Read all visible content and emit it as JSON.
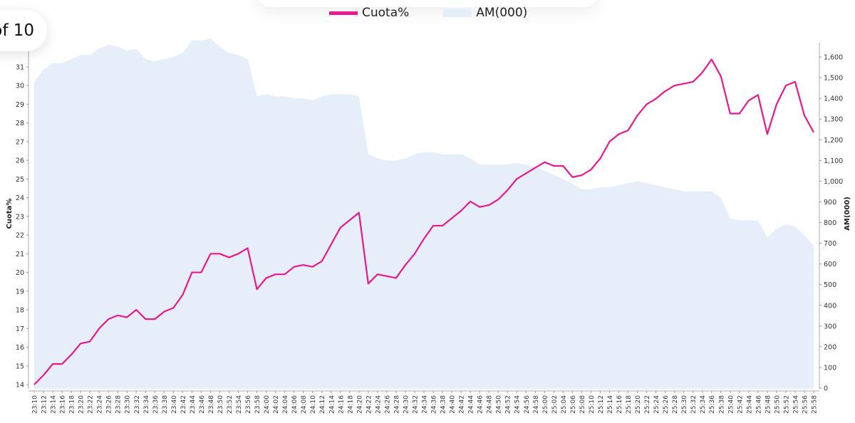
{
  "pager": {
    "label": "of 10"
  },
  "chart_data": {
    "type": "line",
    "title": "",
    "legend_position": "top-center",
    "ylabel": "Cuota%",
    "y2label": "AM(000)",
    "ylim": [
      13.8,
      31.8
    ],
    "y2lim": [
      0,
      1700
    ],
    "yticks": [
      14,
      15,
      16,
      17,
      18,
      19,
      20,
      21,
      22,
      23,
      24,
      25,
      26,
      27,
      28,
      29,
      30,
      31
    ],
    "y2ticks": [
      "0",
      "100",
      "200",
      "300",
      "400",
      "500",
      "600",
      "700",
      "800",
      "900",
      "1,000",
      "1,100",
      "1,200",
      "1,300",
      "1,400",
      "1,500",
      "1,600"
    ],
    "x": [
      "23:10",
      "23:12",
      "23:14",
      "23:16",
      "23:18",
      "23:20",
      "23:22",
      "23:24",
      "23:26",
      "23:28",
      "23:30",
      "23:32",
      "23:34",
      "23:36",
      "23:38",
      "23:40",
      "23:42",
      "23:44",
      "23:46",
      "23:48",
      "23:50",
      "23:52",
      "23:54",
      "23:56",
      "23:58",
      "24:00",
      "24:02",
      "24:04",
      "24:06",
      "24:08",
      "24:10",
      "24:12",
      "24:14",
      "24:16",
      "24:18",
      "24:20",
      "24:22",
      "24:24",
      "24:26",
      "24:28",
      "24:30",
      "24:32",
      "24:34",
      "24:36",
      "24:38",
      "24:40",
      "24:42",
      "24:44",
      "24:46",
      "24:48",
      "24:50",
      "24:52",
      "24:54",
      "24:56",
      "24:58",
      "25:00",
      "25:02",
      "25:04",
      "25:06",
      "25:08",
      "25:10",
      "25:12",
      "25:14",
      "25:16",
      "25:18",
      "25:20",
      "25:22",
      "25:24",
      "25:26",
      "25:28",
      "25:30",
      "25:32",
      "25:34",
      "25:36",
      "25:38",
      "25:40",
      "25:42",
      "25:44",
      "25:46",
      "25:48",
      "25:50",
      "25:52",
      "25:54",
      "25:56",
      "25:58"
    ],
    "series": [
      {
        "name": "Cuota%",
        "axis": "left",
        "kind": "line",
        "color": "#e8188f",
        "values": [
          14.0,
          14.5,
          15.1,
          15.1,
          15.6,
          16.2,
          16.3,
          17.0,
          17.5,
          17.7,
          17.6,
          18.0,
          17.5,
          17.5,
          17.9,
          18.1,
          18.8,
          20.0,
          20.0,
          21.0,
          21.0,
          20.8,
          21.0,
          21.3,
          19.1,
          19.7,
          19.9,
          19.9,
          20.3,
          20.4,
          20.3,
          20.6,
          21.5,
          22.4,
          22.8,
          23.2,
          19.4,
          19.9,
          19.8,
          19.7,
          20.4,
          21.0,
          21.8,
          22.5,
          22.5,
          22.9,
          23.3,
          23.8,
          23.5,
          23.6,
          23.9,
          24.4,
          25.0,
          25.3,
          25.6,
          25.9,
          25.7,
          25.7,
          25.1,
          25.2,
          25.5,
          26.1,
          27.0,
          27.4,
          27.6,
          28.4,
          29.0,
          29.3,
          29.7,
          30.0,
          30.1,
          30.2,
          30.7,
          31.4,
          30.5,
          28.5,
          28.5,
          29.2,
          29.5,
          27.4,
          29.0,
          30.0,
          30.2,
          28.4,
          27.5
        ]
      },
      {
        "name": "AM(000)",
        "axis": "right",
        "kind": "area",
        "color": "#e6eff9",
        "values": [
          1480,
          1540,
          1570,
          1570,
          1590,
          1610,
          1610,
          1640,
          1660,
          1650,
          1630,
          1640,
          1590,
          1580,
          1590,
          1600,
          1620,
          1680,
          1680,
          1690,
          1650,
          1620,
          1610,
          1590,
          1410,
          1420,
          1410,
          1410,
          1400,
          1400,
          1390,
          1410,
          1420,
          1420,
          1420,
          1410,
          1130,
          1110,
          1100,
          1100,
          1110,
          1130,
          1140,
          1140,
          1130,
          1130,
          1130,
          1110,
          1080,
          1080,
          1080,
          1080,
          1090,
          1080,
          1070,
          1050,
          1030,
          1010,
          990,
          960,
          960,
          970,
          970,
          980,
          990,
          1000,
          990,
          980,
          970,
          960,
          950,
          950,
          950,
          950,
          920,
          820,
          810,
          810,
          810,
          730,
          770,
          790,
          780,
          740,
          690
        ]
      }
    ]
  }
}
